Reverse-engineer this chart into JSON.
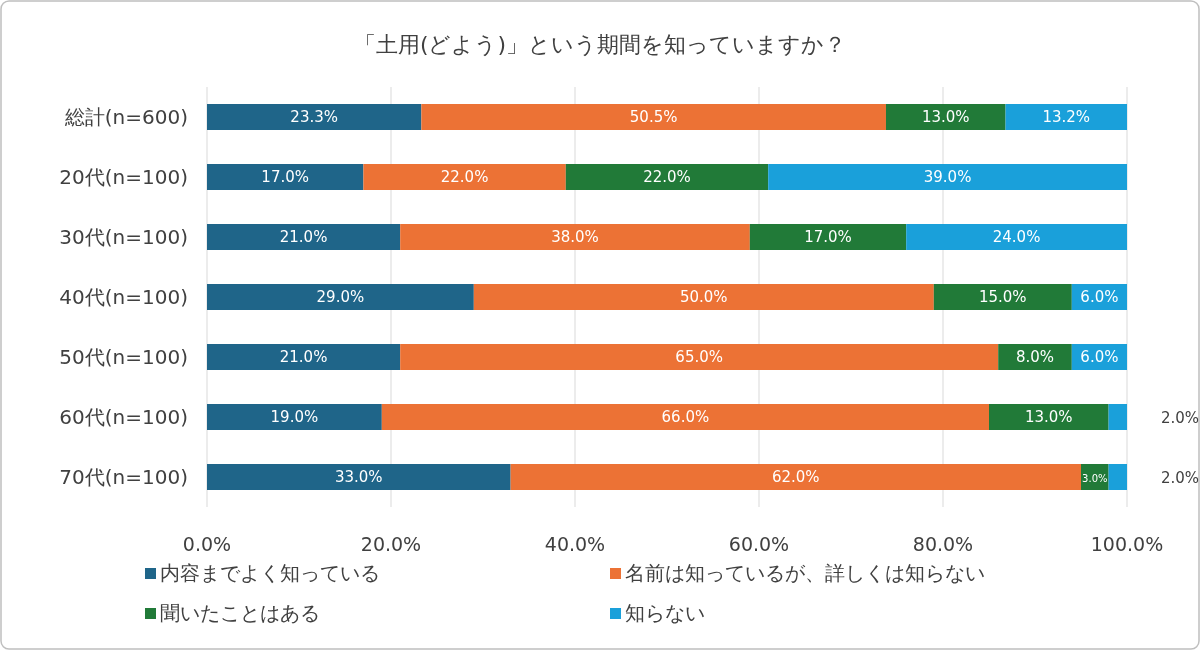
{
  "chart_data": {
    "type": "bar",
    "orientation": "horizontal",
    "stacked": true,
    "title": "「土用(どよう)」という期間を知っていますか？",
    "categories": [
      "総計(n=600)",
      "20代(n=100)",
      "30代(n=100)",
      "40代(n=100)",
      "50代(n=100)",
      "60代(n=100)",
      "70代(n=100)"
    ],
    "series": [
      {
        "name": "内容までよく知っている",
        "color": "#1f6589",
        "values": [
          23.3,
          17.0,
          21.0,
          29.0,
          21.0,
          19.0,
          33.0
        ],
        "value_labels": [
          "23.3%",
          "17.0%",
          "21.0%",
          "29.0%",
          "21.0%",
          "19.0%",
          "33.0%"
        ]
      },
      {
        "name": "名前は知っているが、詳しくは知らない",
        "color": "#ec7235",
        "values": [
          50.5,
          22.0,
          38.0,
          50.0,
          65.0,
          66.0,
          62.0
        ],
        "value_labels": [
          "50.5%",
          "22.0%",
          "38.0%",
          "50.0%",
          "65.0%",
          "66.0%",
          "62.0%"
        ]
      },
      {
        "name": "聞いたことはある",
        "color": "#217a38",
        "values": [
          13.0,
          22.0,
          17.0,
          15.0,
          8.0,
          13.0,
          3.0
        ],
        "value_labels": [
          "13.0%",
          "22.0%",
          "17.0%",
          "15.0%",
          "8.0%",
          "13.0%",
          "3.0%"
        ]
      },
      {
        "name": "知らない",
        "color": "#1aa0da",
        "values": [
          13.2,
          39.0,
          24.0,
          6.0,
          6.0,
          2.0,
          2.0
        ],
        "value_labels": [
          "13.2%",
          "39.0%",
          "24.0%",
          "6.0%",
          "6.0%",
          "2.0%",
          "2.0%"
        ]
      }
    ],
    "xlim": [
      0,
      100
    ],
    "xticks": [
      {
        "value": 0,
        "label": "0.0%"
      },
      {
        "value": 20,
        "label": "20.0%"
      },
      {
        "value": 40,
        "label": "40.0%"
      },
      {
        "value": 60,
        "label": "60.0%"
      },
      {
        "value": 80,
        "label": "80.0%"
      },
      {
        "value": 100,
        "label": "100.0%"
      }
    ],
    "grid": "x",
    "legend": "bottom"
  }
}
